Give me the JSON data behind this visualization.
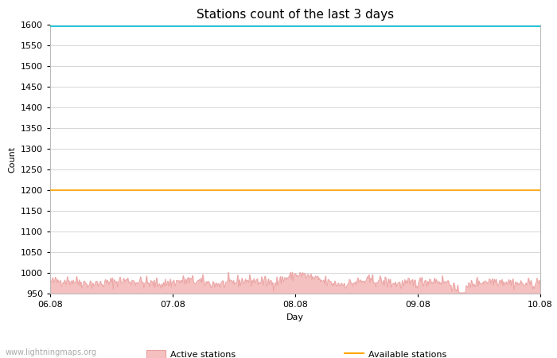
{
  "title": "Stations count of the last 3 days",
  "xlabel": "Day",
  "ylabel": "Count",
  "ylim": [
    950,
    1600
  ],
  "yticks": [
    950,
    1000,
    1050,
    1100,
    1150,
    1200,
    1250,
    1300,
    1350,
    1400,
    1450,
    1500,
    1550,
    1600
  ],
  "x_start": 0,
  "x_end": 4,
  "xtick_positions": [
    0,
    1,
    2,
    3,
    4
  ],
  "xtick_labels": [
    "06.08",
    "07.08",
    "08.08",
    "09.08",
    "10.08"
  ],
  "highest_ever": 1597,
  "available_stations": 1200,
  "active_stations_base": 975,
  "active_fill_color": "#f5c0c0",
  "active_line_color": "#e8a0a0",
  "highest_line_color": "#00bcd4",
  "available_line_color": "#ffa500",
  "background_color": "#ffffff",
  "grid_color": "#d0d0d0",
  "title_fontsize": 11,
  "axis_label_fontsize": 8,
  "tick_fontsize": 8,
  "watermark": "www.lightningmaps.org"
}
